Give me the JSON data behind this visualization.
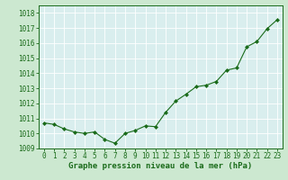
{
  "x": [
    0,
    1,
    2,
    3,
    4,
    5,
    6,
    7,
    8,
    9,
    10,
    11,
    12,
    13,
    14,
    15,
    16,
    17,
    18,
    19,
    20,
    21,
    22,
    23
  ],
  "y": [
    1010.7,
    1010.6,
    1010.3,
    1010.1,
    1010.0,
    1010.1,
    1009.6,
    1009.35,
    1010.0,
    1010.2,
    1010.5,
    1010.45,
    1011.4,
    1012.15,
    1012.6,
    1013.1,
    1013.2,
    1013.45,
    1014.2,
    1014.35,
    1015.75,
    1016.1,
    1016.95,
    1017.55
  ],
  "line_color": "#1a6b1a",
  "marker": "D",
  "marker_size": 2.0,
  "bg_color": "#cce8d0",
  "plot_bg_color": "#d9eeee",
  "grid_color": "#ffffff",
  "xlabel": "Graphe pression niveau de la mer (hPa)",
  "ylim": [
    1009.0,
    1018.5
  ],
  "xlim": [
    -0.5,
    23.5
  ],
  "yticks": [
    1009,
    1010,
    1011,
    1012,
    1013,
    1014,
    1015,
    1016,
    1017,
    1018
  ],
  "xtick_labels": [
    "0",
    "1",
    "2",
    "3",
    "4",
    "5",
    "6",
    "7",
    "8",
    "9",
    "10",
    "11",
    "12",
    "13",
    "14",
    "15",
    "16",
    "17",
    "18",
    "19",
    "20",
    "21",
    "22",
    "23"
  ],
  "tick_color": "#1a6b1a",
  "label_fontsize": 6.5,
  "tick_fontsize": 5.5,
  "grid_linewidth": 0.6,
  "line_width": 0.8
}
